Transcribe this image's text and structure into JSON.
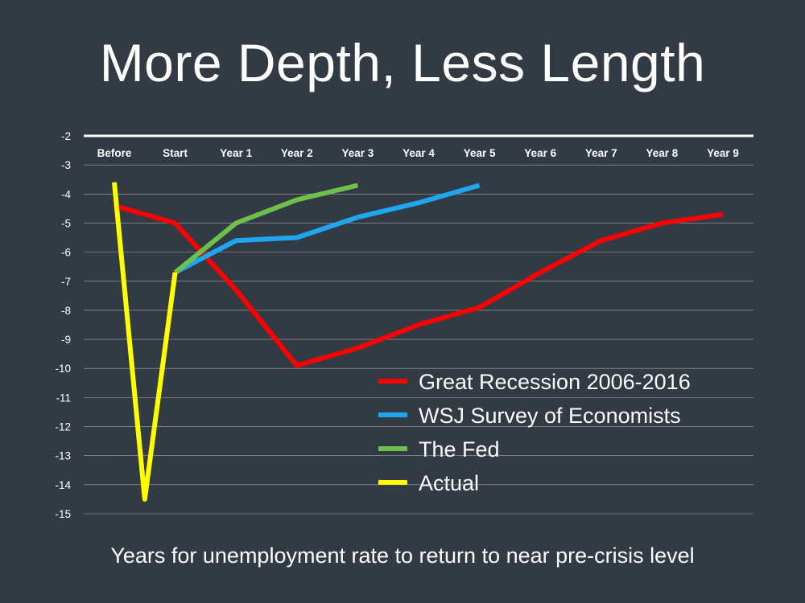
{
  "slide": {
    "title": "More Depth, Less Length",
    "subtitle": "Years for unemployment rate to return to near pre-crisis level"
  },
  "chart_data": {
    "type": "line",
    "title": "More Depth, Less Length",
    "xlabel": "Years for unemployment rate to return to near pre-crisis level",
    "ylabel": "",
    "categories": [
      "Before",
      "Start",
      "Year 1",
      "Year 2",
      "Year 3",
      "Year 4",
      "Year 5",
      "Year 6",
      "Year 7",
      "Year 8",
      "Year 9"
    ],
    "ylim": [
      -15,
      -2
    ],
    "yticks": [
      -2,
      -3,
      -4,
      -5,
      -6,
      -7,
      -8,
      -9,
      -10,
      -11,
      -12,
      -13,
      -14,
      -15
    ],
    "grid": true,
    "legend_position": "bottom-right",
    "series": [
      {
        "name": "Great Recession 2006-2016",
        "color": "#ff0000",
        "points": [
          [
            0,
            -4.4
          ],
          [
            1,
            -5.0
          ],
          [
            2,
            -7.3
          ],
          [
            3,
            -9.9
          ],
          [
            4,
            -9.3
          ],
          [
            5,
            -8.5
          ],
          [
            6,
            -7.9
          ],
          [
            7,
            -6.7
          ],
          [
            8,
            -5.6
          ],
          [
            9,
            -5.0
          ],
          [
            10,
            -4.7
          ]
        ]
      },
      {
        "name": "WSJ Survey of Economists",
        "color": "#1ea7f0",
        "points": [
          [
            1,
            -6.7
          ],
          [
            2,
            -5.6
          ],
          [
            3,
            -5.5
          ],
          [
            4,
            -4.8
          ],
          [
            5,
            -4.3
          ],
          [
            6,
            -3.7
          ]
        ]
      },
      {
        "name": "The Fed",
        "color": "#6fbf4b",
        "points": [
          [
            1,
            -6.7
          ],
          [
            2,
            -5.0
          ],
          [
            3,
            -4.2
          ],
          [
            4,
            -3.7
          ]
        ]
      },
      {
        "name": "Actual",
        "color": "#ffff00",
        "points": [
          [
            0,
            -3.6
          ],
          [
            0.5,
            -14.5
          ],
          [
            1,
            -6.7
          ]
        ]
      }
    ]
  }
}
